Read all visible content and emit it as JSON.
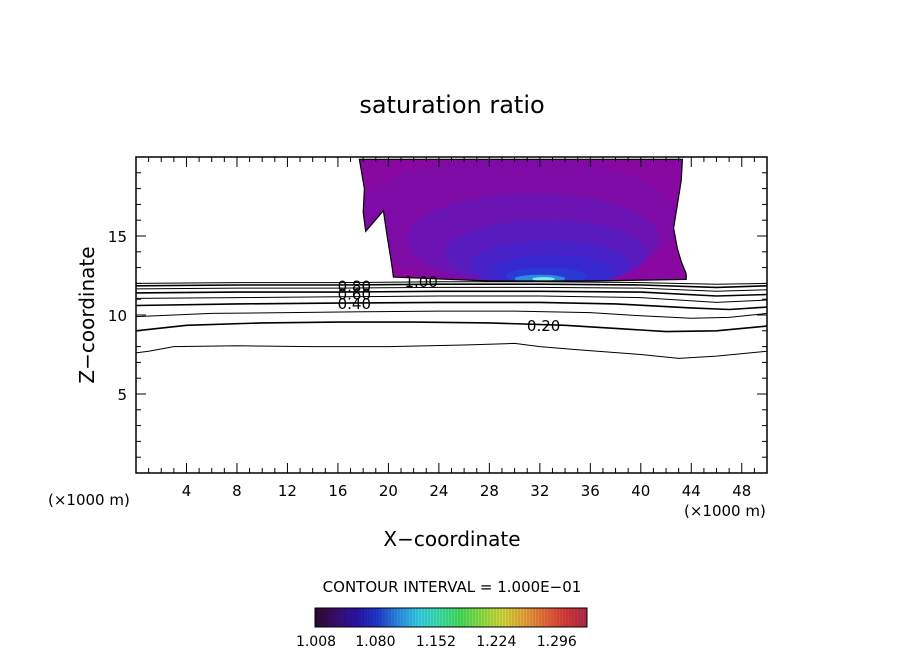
{
  "chart_data": {
    "type": "contour",
    "title": "saturation ratio",
    "xlabel": "X−coordinate",
    "ylabel": "Z−coordinate",
    "x_unit_label": "(×1000 m)",
    "y_unit_label": "(×1000 m)",
    "xlim": [
      0,
      50
    ],
    "ylim": [
      0,
      20
    ],
    "xticks": [
      4,
      8,
      12,
      16,
      20,
      24,
      28,
      32,
      36,
      40,
      44,
      48
    ],
    "yticks": [
      5,
      10,
      15
    ],
    "contour_interval_text": "CONTOUR INTERVAL = 1.000E−01",
    "contour_labels": [
      {
        "text": "1.00",
        "x": 22.6,
        "z": 12.1
      },
      {
        "text": "0.80",
        "x": 17.3,
        "z": 11.8
      },
      {
        "text": "0.60",
        "x": 17.3,
        "z": 11.3
      },
      {
        "text": "0.40",
        "x": 17.3,
        "z": 10.7
      },
      {
        "text": "0.20",
        "x": 32.3,
        "z": 9.3
      }
    ],
    "contour_lines": [
      {
        "level": 0.1,
        "x": [
          0,
          1,
          3,
          8,
          14,
          20,
          26,
          30,
          32,
          35,
          40,
          43,
          46,
          50
        ],
        "z": [
          7.6,
          7.7,
          8.0,
          8.05,
          8.0,
          8.0,
          8.1,
          8.2,
          8.0,
          7.8,
          7.5,
          7.25,
          7.4,
          7.7
        ]
      },
      {
        "level": 0.2,
        "x": [
          0,
          4,
          10,
          16,
          22,
          28,
          34,
          38,
          42,
          46,
          50
        ],
        "z": [
          9.0,
          9.35,
          9.5,
          9.55,
          9.55,
          9.5,
          9.35,
          9.15,
          8.95,
          9.0,
          9.3
        ]
      },
      {
        "level": 0.3,
        "x": [
          0,
          6,
          12,
          18,
          24,
          30,
          36,
          40,
          44,
          47,
          50
        ],
        "z": [
          9.9,
          10.1,
          10.15,
          10.2,
          10.25,
          10.25,
          10.15,
          9.95,
          9.8,
          9.85,
          10.1
        ]
      },
      {
        "level": 0.4,
        "x": [
          0,
          8,
          16,
          24,
          32,
          38,
          44,
          47,
          50
        ],
        "z": [
          10.6,
          10.7,
          10.75,
          10.8,
          10.8,
          10.7,
          10.45,
          10.35,
          10.5
        ]
      },
      {
        "level": 0.5,
        "x": [
          0,
          8,
          16,
          24,
          32,
          40,
          46,
          50
        ],
        "z": [
          11.05,
          11.1,
          11.15,
          11.2,
          11.2,
          11.1,
          10.8,
          10.95
        ]
      },
      {
        "level": 0.6,
        "x": [
          0,
          8,
          16,
          24,
          32,
          40,
          46,
          50
        ],
        "z": [
          11.4,
          11.45,
          11.45,
          11.5,
          11.5,
          11.45,
          11.2,
          11.3
        ]
      },
      {
        "level": 0.7,
        "x": [
          0,
          8,
          16,
          24,
          32,
          40,
          46,
          50
        ],
        "z": [
          11.65,
          11.7,
          11.7,
          11.75,
          11.75,
          11.7,
          11.5,
          11.6
        ]
      },
      {
        "level": 0.8,
        "x": [
          0,
          8,
          16,
          24,
          32,
          40,
          46,
          50
        ],
        "z": [
          11.85,
          11.9,
          11.9,
          11.95,
          11.95,
          11.9,
          11.75,
          11.85
        ]
      },
      {
        "level": 0.9,
        "x": [
          0,
          8,
          16,
          24,
          32,
          40,
          46,
          50
        ],
        "z": [
          12.0,
          12.05,
          12.05,
          12.1,
          12.1,
          12.05,
          11.95,
          12.0
        ]
      }
    ],
    "saturated_region": {
      "level": 1.0,
      "x": [
        17.7,
        43.3,
        43.2,
        42.9,
        42.6,
        42.9,
        43.2,
        43.6,
        43.6,
        36.0,
        28.0,
        20.4,
        20.3,
        20.1,
        19.9,
        19.6,
        18.2,
        18.0,
        18.1,
        17.7
      ],
      "z": [
        19.85,
        19.85,
        18.5,
        17.0,
        15.5,
        14.2,
        13.4,
        12.6,
        12.25,
        12.15,
        12.15,
        12.4,
        13.0,
        14.0,
        15.0,
        16.6,
        15.3,
        16.5,
        18.0,
        19.85
      ]
    },
    "fill_layers": [
      {
        "value": 1.02,
        "color": "#7e0ba6",
        "cx": 30.0,
        "cz": 16.0,
        "rx": 13.0,
        "rz": 4.0
      },
      {
        "value": 1.04,
        "color": "#6c14b3",
        "cx": 31.5,
        "cz": 14.8,
        "rx": 10.0,
        "rz": 2.9
      },
      {
        "value": 1.06,
        "color": "#5a1bbe",
        "cx": 32.5,
        "cz": 13.9,
        "rx": 8.0,
        "rz": 2.1
      },
      {
        "value": 1.08,
        "color": "#4721c8",
        "cx": 32.8,
        "cz": 13.2,
        "rx": 6.3,
        "rz": 1.5
      },
      {
        "value": 1.1,
        "color": "#3727cf",
        "cx": 33.0,
        "cz": 12.75,
        "rx": 4.8,
        "rz": 1.05
      },
      {
        "value": 1.13,
        "color": "#2a39d4",
        "cx": 32.5,
        "cz": 12.45,
        "rx": 3.2,
        "rz": 0.55
      },
      {
        "value": 1.18,
        "color": "#2d8be0",
        "cx": 32.0,
        "cz": 12.3,
        "rx": 2.0,
        "rz": 0.25
      },
      {
        "value": 1.22,
        "color": "#7fe8ee",
        "cx": 32.3,
        "cz": 12.28,
        "rx": 0.9,
        "rz": 0.12
      }
    ],
    "colorbar": {
      "min": 1.008,
      "max": 1.332,
      "tick_labels": [
        "1.008",
        "1.080",
        "1.152",
        "1.224",
        "1.296"
      ],
      "tick_values": [
        1.008,
        1.08,
        1.152,
        1.224,
        1.296
      ],
      "colors": [
        "#2a0a2e",
        "#3b0d6e",
        "#2a14a8",
        "#1f3ad0",
        "#2c8fe6",
        "#38d3e6",
        "#3ee2a4",
        "#4ade5a",
        "#92df46",
        "#d6d93a",
        "#e8a63a",
        "#e86a3a",
        "#d83a3a",
        "#b02c4a"
      ]
    }
  }
}
